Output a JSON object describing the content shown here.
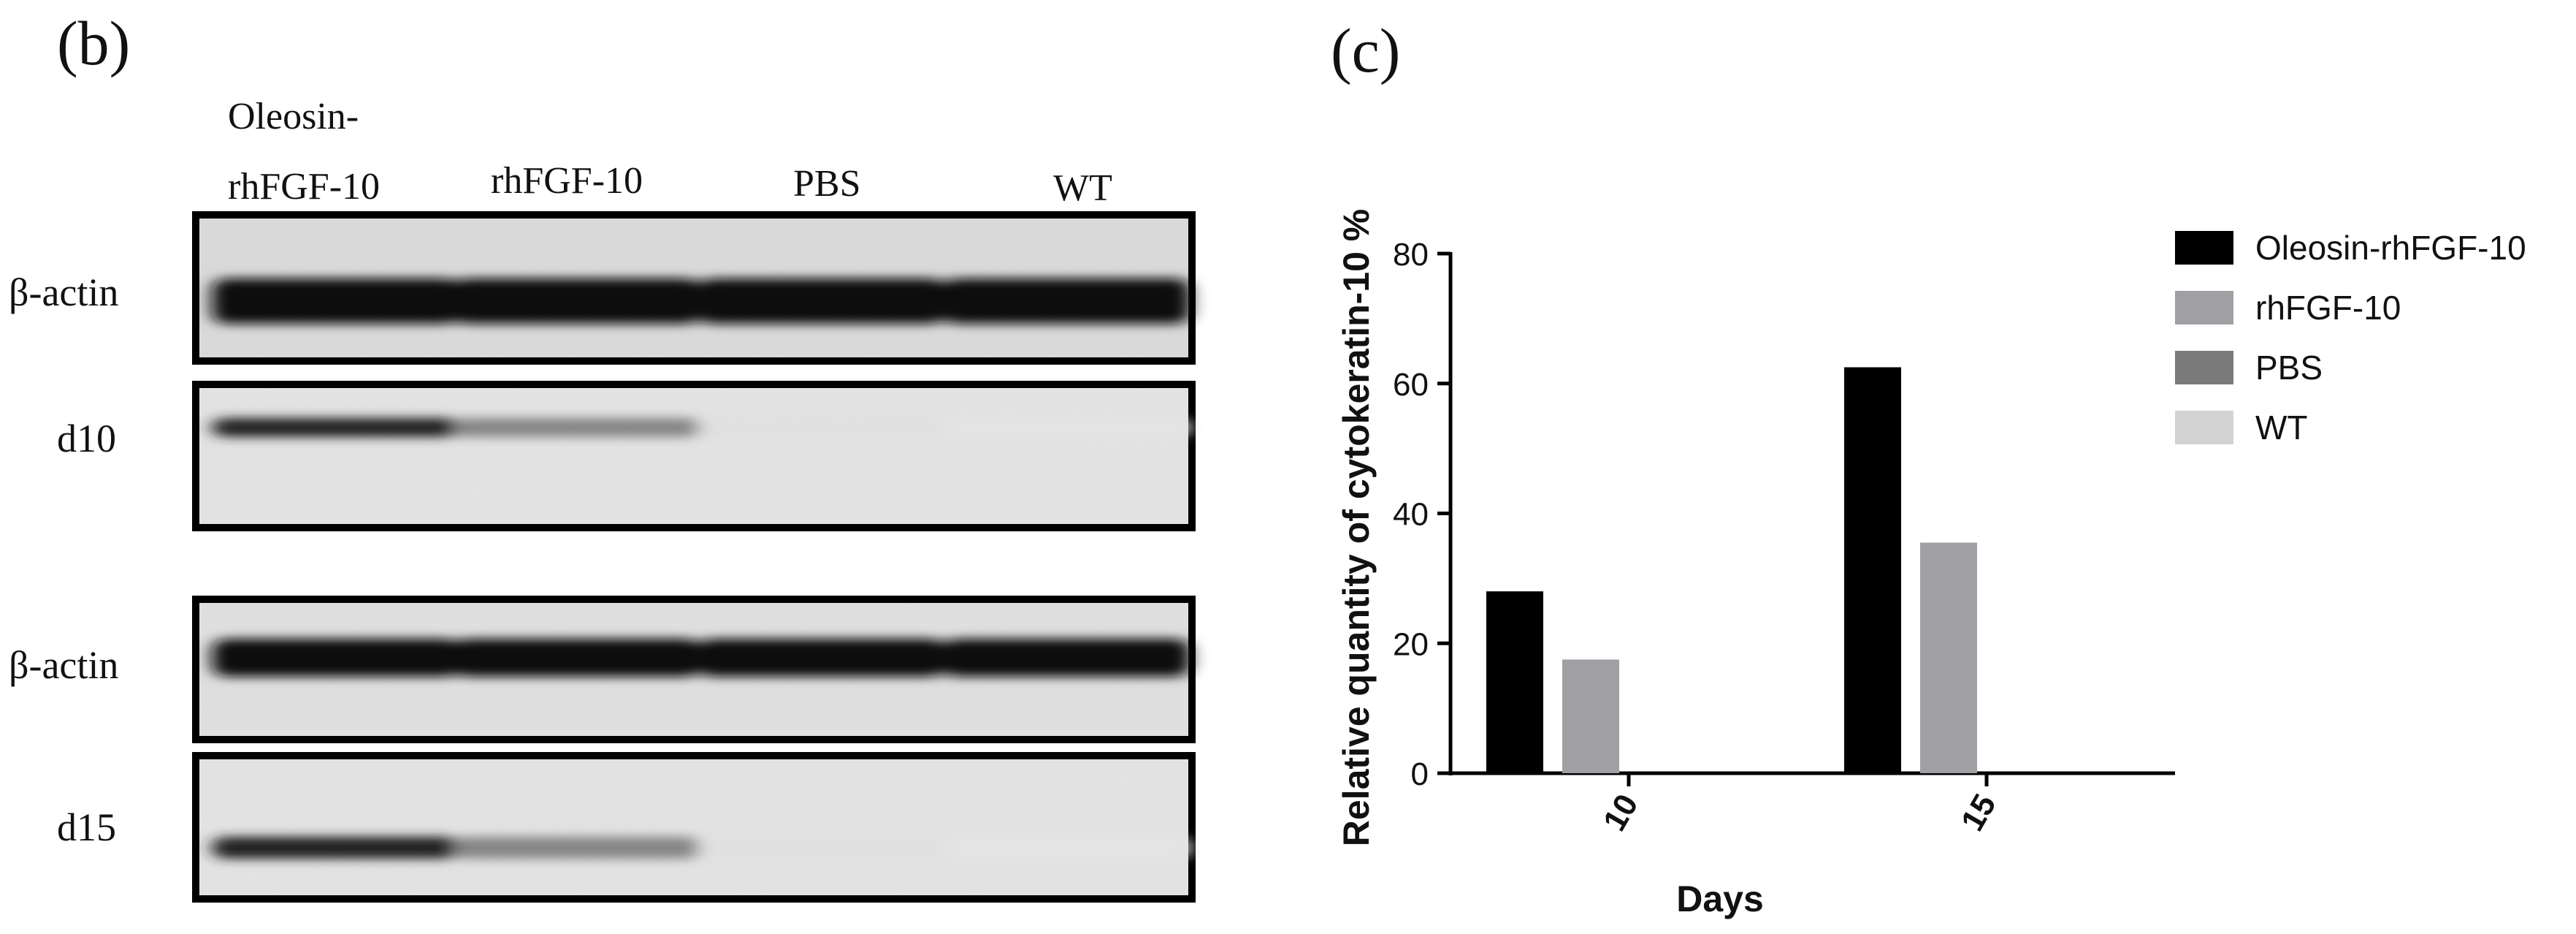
{
  "blot": {
    "panel_label": "(b)",
    "lane_headers": [
      "Oleosin-",
      "rhFGF-10",
      "rhFGF-10",
      "PBS",
      "WT"
    ],
    "row_labels": [
      "β-actin",
      "d10",
      "β-actin",
      "d15"
    ],
    "band_intensity": {
      "beta_actin_d10": [
        1,
        1,
        1,
        1
      ],
      "d10": [
        0.9,
        0.45,
        0.05,
        0.03
      ],
      "beta_actin_d15": [
        1,
        1,
        1,
        1
      ],
      "d15": [
        0.9,
        0.45,
        0.05,
        0.03
      ]
    }
  },
  "chart_label": "(c)",
  "colors": {
    "Oleosin-rhFGF-10": "#000000",
    "rhFGF-10": "#a0a0a4",
    "PBS": "#7a7a7a",
    "WT": "#d3d3d3"
  },
  "chart_data": {
    "type": "bar",
    "categories": [
      "10",
      "15"
    ],
    "series": [
      {
        "name": "Oleosin-rhFGF-10",
        "values": [
          28,
          62.5
        ]
      },
      {
        "name": "rhFGF-10",
        "values": [
          17.5,
          35.5
        ]
      },
      {
        "name": "PBS",
        "values": [
          0,
          0
        ]
      },
      {
        "name": "WT",
        "values": [
          0,
          0
        ]
      }
    ],
    "xlabel": "Days",
    "ylabel": "Relative quantity of cytokeratin-10 %",
    "ylim": [
      0,
      80
    ],
    "yticks": [
      "0",
      "20",
      "40",
      "60",
      "80"
    ],
    "grid": false,
    "legend_position": "right"
  }
}
